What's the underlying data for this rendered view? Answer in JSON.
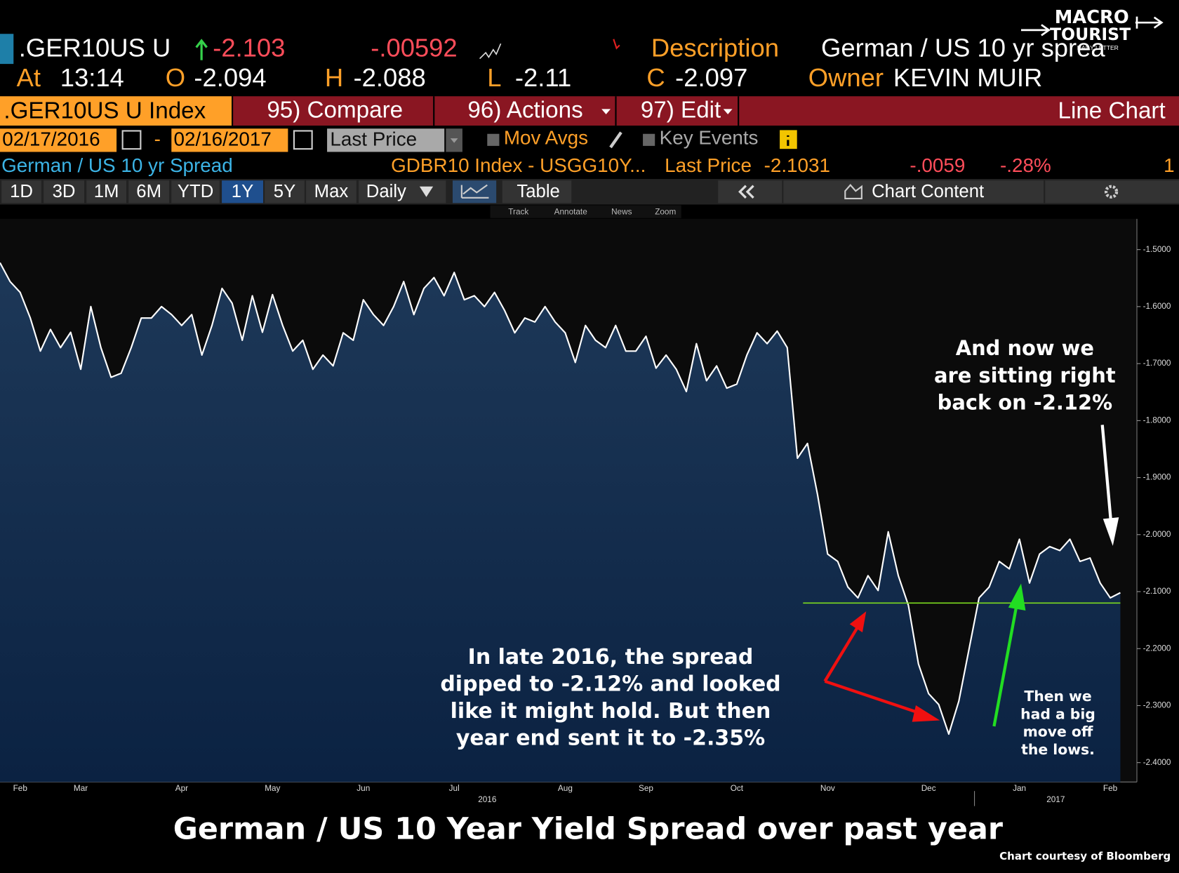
{
  "terminal": {
    "ticker": ".GER10US U",
    "last": "-2.103",
    "change": "-.00592",
    "desc_label": "Description",
    "desc_value": "German / US 10 yr sprea",
    "at_label": "At",
    "time": "13:14",
    "open_label": "O",
    "open": "-2.094",
    "high_label": "H",
    "high": "-2.088",
    "low_label": "L",
    "low": "-2.11",
    "close_label": "C",
    "close": "-2.097",
    "owner_label": "Owner",
    "owner": "KEVIN MUIR"
  },
  "logo": {
    "line1": "MACRO",
    "line2": "TOURIST",
    "line3": "DAILY LETTER"
  },
  "toolbar": {
    "index_label": ".GER10US U Index",
    "menu": [
      "95) Compare",
      "96) Actions",
      "97) Edit"
    ],
    "chart_type": "Line Chart",
    "start_date": "02/17/2016",
    "dash": "-",
    "end_date": "02/16/2017",
    "field": "Last Price",
    "mov_avgs": "Mov Avgs",
    "key_events": "Key Events"
  },
  "legend_row": {
    "series_name": "German / US 10 yr Spread",
    "formula": "GDBR10 Index - USGG10Y...",
    "last_price_label": "Last Price",
    "last_price": "-2.1031",
    "chg": "-.0059",
    "pct": "-.28%",
    "count": "1"
  },
  "period_bar": {
    "periods": [
      "1D",
      "3D",
      "1M",
      "6M",
      "YTD",
      "1Y",
      "5Y",
      "Max"
    ],
    "freq": "Daily",
    "table": "Table",
    "chart_content": "Chart Content",
    "tools": [
      "Track",
      "Annotate",
      "News",
      "Zoom"
    ]
  },
  "chart_data": {
    "type": "line",
    "title": "German / US 10 Year Yield Spread over past year",
    "credit": "Chart courtesy of Bloomberg",
    "categories": [
      null,
      null,
      "Feb",
      null,
      null,
      null,
      null,
      null,
      "Mar",
      null,
      null,
      null,
      null,
      null,
      null,
      null,
      null,
      null,
      "Apr",
      null,
      null,
      null,
      null,
      null,
      null,
      null,
      null,
      "May",
      null,
      null,
      null,
      null,
      null,
      null,
      null,
      null,
      "Jun",
      null,
      null,
      null,
      null,
      null,
      null,
      null,
      null,
      "Jul",
      null,
      null,
      null,
      null,
      null,
      null,
      null,
      null,
      null,
      null,
      "Aug",
      null,
      null,
      null,
      null,
      null,
      null,
      null,
      "Sep",
      null,
      null,
      null,
      null,
      null,
      null,
      null,
      null,
      "Oct",
      null,
      null,
      null,
      null,
      null,
      null,
      null,
      null,
      "Nov",
      null,
      null,
      null,
      null,
      null,
      null,
      null,
      null,
      null,
      "Dec",
      null,
      null,
      null,
      null,
      null,
      null,
      null,
      null,
      "Jan",
      null,
      null,
      null,
      null,
      null,
      null,
      null,
      null,
      "Feb",
      null
    ],
    "x_year_labels": [
      "2016",
      "2017"
    ],
    "values": [
      -1.523,
      -1.556,
      -1.575,
      -1.62,
      -1.678,
      -1.64,
      -1.672,
      -1.645,
      -1.71,
      -1.6,
      -1.672,
      -1.724,
      -1.717,
      -1.672,
      -1.62,
      -1.62,
      -1.6,
      -1.614,
      -1.633,
      -1.614,
      -1.685,
      -1.633,
      -1.568,
      -1.594,
      -1.659,
      -1.581,
      -1.645,
      -1.579,
      -1.633,
      -1.678,
      -1.659,
      -1.71,
      -1.685,
      -1.704,
      -1.646,
      -1.659,
      -1.588,
      -1.614,
      -1.633,
      -1.6,
      -1.556,
      -1.614,
      -1.568,
      -1.549,
      -1.581,
      -1.54,
      -1.588,
      -1.581,
      -1.6,
      -1.575,
      -1.607,
      -1.646,
      -1.62,
      -1.627,
      -1.6,
      -1.627,
      -1.646,
      -1.698,
      -1.633,
      -1.659,
      -1.672,
      -1.633,
      -1.678,
      -1.678,
      -1.652,
      -1.708,
      -1.685,
      -1.71,
      -1.749,
      -1.665,
      -1.73,
      -1.704,
      -1.743,
      -1.736,
      -1.685,
      -1.646,
      -1.665,
      -1.643,
      -1.672,
      -1.866,
      -1.84,
      -1.93,
      -2.034,
      -2.047,
      -2.092,
      -2.111,
      -2.072,
      -2.098,
      -1.995,
      -2.072,
      -2.124,
      -2.227,
      -2.279,
      -2.298,
      -2.35,
      -2.292,
      -2.202,
      -2.111,
      -2.092,
      -2.047,
      -2.06,
      -2.008,
      -2.085,
      -2.034,
      -2.021,
      -2.028,
      -2.008,
      -2.047,
      -2.041,
      -2.085,
      -2.111,
      -2.102
    ],
    "color": "#ffffff",
    "ylim": [
      -2.434,
      -1.446
    ],
    "yticks": [
      {
        "value": -1.5,
        "label": "-1.5000"
      },
      {
        "value": -1.6,
        "label": "-1.6000"
      },
      {
        "value": -1.7,
        "label": "-1.7000"
      },
      {
        "value": -1.8,
        "label": "-1.8000"
      },
      {
        "value": -1.9,
        "label": "-1.9000"
      },
      {
        "value": -2.0,
        "label": "-2.0000"
      },
      {
        "value": -2.1,
        "label": "-2.1000"
      },
      {
        "value": -2.2,
        "label": "-2.2000"
      },
      {
        "value": -2.3,
        "label": "-2.3000"
      },
      {
        "value": -2.4,
        "label": "-2.4000"
      }
    ],
    "grid": false,
    "reference_line": {
      "value": -2.12,
      "color": "#7ddc1f"
    },
    "annotations": {
      "now": [
        "And now we",
        "are sitting right",
        "back on -2.12%"
      ],
      "late_2016": [
        "In late 2016, the spread",
        "dipped to -2.12% and looked",
        "like it might hold.  But then",
        "year end sent it to -2.35%"
      ],
      "then": [
        "Then we",
        "had a big",
        "move off",
        "the lows."
      ]
    }
  }
}
